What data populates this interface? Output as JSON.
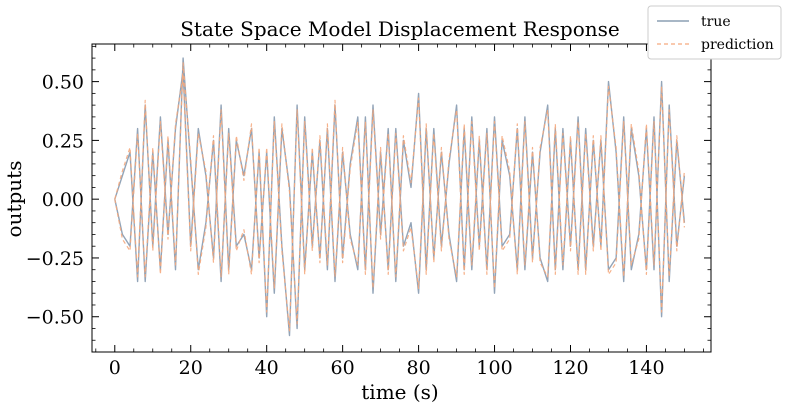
{
  "chart_data": {
    "type": "line",
    "title": "State Space Model Displacement Response",
    "xlabel": "time (s)",
    "ylabel": "outputs",
    "xlim": [
      -6,
      157
    ],
    "ylim": [
      -0.65,
      0.66
    ],
    "x_ticks": [
      0,
      20,
      40,
      60,
      80,
      100,
      120,
      140
    ],
    "x_tick_labels": [
      "0",
      "20",
      "40",
      "60",
      "80",
      "100",
      "120",
      "140"
    ],
    "y_ticks": [
      0.5,
      0.25,
      0.0,
      -0.25,
      -0.5
    ],
    "y_tick_labels": [
      "0.50",
      "0.25",
      "0.00",
      "−0.25",
      "−0.50"
    ],
    "grid": false,
    "legend": {
      "placement": "top-right, outside axes",
      "entries": [
        "true",
        "prediction"
      ]
    },
    "series": [
      {
        "name": "true",
        "color": "#8c9fb4",
        "style": "solid",
        "x": [
          0,
          2,
          4,
          6,
          8,
          10,
          12,
          14,
          16,
          18,
          20,
          22,
          24,
          26,
          28,
          30,
          32,
          34,
          36,
          38,
          40,
          42,
          44,
          46,
          48,
          50,
          52,
          54,
          56,
          58,
          60,
          62,
          64,
          66,
          68,
          70,
          72,
          74,
          76,
          78,
          80,
          82,
          84,
          86,
          88,
          90,
          92,
          94,
          96,
          98,
          100,
          102,
          104,
          106,
          108,
          110,
          112,
          114,
          116,
          118,
          120,
          122,
          124,
          126,
          128,
          130,
          132,
          134,
          136,
          138,
          140,
          142,
          144,
          146,
          148,
          150
        ],
        "y": [
          0,
          0.1,
          0.2,
          -0.35,
          0.4,
          -0.2,
          0.35,
          -0.15,
          0.3,
          0.55,
          -0.2,
          0.3,
          0.1,
          -0.25,
          0.4,
          -0.3,
          0.25,
          0.1,
          0.3,
          -0.25,
          0.2,
          -0.4,
          0.3,
          0.05,
          -0.55,
          0.35,
          -0.2,
          0.25,
          -0.3,
          0.4,
          -0.25,
          0.15,
          0.35,
          -0.3,
          0.4,
          -0.15,
          0.3,
          -0.35,
          0.25,
          0.05,
          0.45,
          -0.3,
          0.3,
          -0.2,
          0.15,
          0.4,
          -0.3,
          0.35,
          -0.2,
          0.3,
          -0.4,
          0.25,
          0.1,
          -0.3,
          0.35,
          -0.25,
          0.2,
          0.4,
          -0.3,
          0.3,
          -0.2,
          0.35,
          -0.3,
          0.25,
          -0.2,
          0.5,
          0.2,
          -0.35,
          0.3,
          0.1,
          -0.3,
          0.35,
          -0.5,
          0.4,
          -0.2,
          0.1
        ]
      },
      {
        "name": "true",
        "color": "#8c9fb4",
        "style": "solid",
        "x": [
          0,
          2,
          4,
          6,
          8,
          10,
          12,
          14,
          16,
          18,
          20,
          22,
          24,
          26,
          28,
          30,
          32,
          34,
          36,
          38,
          40,
          42,
          44,
          46,
          48,
          50,
          52,
          54,
          56,
          58,
          60,
          62,
          64,
          66,
          68,
          70,
          72,
          74,
          76,
          78,
          80,
          82,
          84,
          86,
          88,
          90,
          92,
          94,
          96,
          98,
          100,
          102,
          104,
          106,
          108,
          110,
          112,
          114,
          116,
          118,
          120,
          122,
          124,
          126,
          128,
          130,
          132,
          134,
          136,
          138,
          140,
          142,
          144,
          146,
          148,
          150
        ],
        "y": [
          0,
          -0.15,
          -0.2,
          0.3,
          -0.35,
          0.2,
          -0.3,
          0.25,
          -0.3,
          0.6,
          0.15,
          -0.3,
          -0.1,
          0.25,
          -0.35,
          0.3,
          -0.2,
          -0.15,
          -0.3,
          0.2,
          -0.5,
          0.35,
          -0.2,
          -0.58,
          0.4,
          -0.3,
          0.2,
          -0.25,
          0.3,
          -0.35,
          0.2,
          -0.15,
          -0.3,
          0.35,
          -0.4,
          0.2,
          -0.3,
          0.3,
          -0.2,
          -0.1,
          -0.4,
          0.3,
          -0.25,
          0.2,
          -0.15,
          -0.35,
          0.3,
          -0.3,
          0.25,
          -0.3,
          0.35,
          -0.2,
          -0.15,
          0.3,
          -0.3,
          0.2,
          -0.25,
          -0.35,
          0.3,
          -0.3,
          0.25,
          -0.3,
          0.3,
          -0.2,
          0.25,
          -0.3,
          -0.25,
          0.35,
          -0.3,
          -0.15,
          0.3,
          -0.3,
          0.5,
          -0.35,
          0.25,
          -0.1
        ]
      },
      {
        "name": "prediction",
        "color": "#f5a97d",
        "style": "dashed",
        "x": [
          0,
          2,
          4,
          6,
          8,
          10,
          12,
          14,
          16,
          18,
          20,
          22,
          24,
          26,
          28,
          30,
          32,
          34,
          36,
          38,
          40,
          42,
          44,
          46,
          48,
          50,
          52,
          54,
          56,
          58,
          60,
          62,
          64,
          66,
          68,
          70,
          72,
          74,
          76,
          78,
          80,
          82,
          84,
          86,
          88,
          90,
          92,
          94,
          96,
          98,
          100,
          102,
          104,
          106,
          108,
          110,
          112,
          114,
          116,
          118,
          120,
          122,
          124,
          126,
          128,
          130,
          132,
          134,
          136,
          138,
          140,
          142,
          144,
          146,
          148,
          150
        ],
        "y": [
          0,
          0.12,
          0.22,
          -0.33,
          0.42,
          -0.22,
          0.33,
          -0.17,
          0.32,
          0.53,
          -0.22,
          0.28,
          0.12,
          -0.27,
          0.38,
          -0.32,
          0.27,
          0.08,
          0.32,
          -0.27,
          0.22,
          -0.38,
          0.32,
          0.03,
          -0.53,
          0.33,
          -0.22,
          0.27,
          -0.28,
          0.42,
          -0.27,
          0.13,
          0.33,
          -0.32,
          0.38,
          -0.17,
          0.28,
          -0.33,
          0.27,
          0.07,
          0.43,
          -0.32,
          0.28,
          -0.22,
          0.17,
          0.38,
          -0.32,
          0.33,
          -0.22,
          0.28,
          -0.38,
          0.27,
          0.12,
          -0.32,
          0.33,
          -0.27,
          0.22,
          0.38,
          -0.32,
          0.28,
          -0.22,
          0.33,
          -0.32,
          0.27,
          -0.22,
          0.48,
          0.22,
          -0.33,
          0.32,
          0.12,
          -0.32,
          0.33,
          -0.48,
          0.38,
          -0.22,
          0.12
        ]
      },
      {
        "name": "prediction",
        "color": "#f5a97d",
        "style": "dashed",
        "x": [
          0,
          2,
          4,
          6,
          8,
          10,
          12,
          14,
          16,
          18,
          20,
          22,
          24,
          26,
          28,
          30,
          32,
          34,
          36,
          38,
          40,
          42,
          44,
          46,
          48,
          50,
          52,
          54,
          56,
          58,
          60,
          62,
          64,
          66,
          68,
          70,
          72,
          74,
          76,
          78,
          80,
          82,
          84,
          86,
          88,
          90,
          92,
          94,
          96,
          98,
          100,
          102,
          104,
          106,
          108,
          110,
          112,
          114,
          116,
          118,
          120,
          122,
          124,
          126,
          128,
          130,
          132,
          134,
          136,
          138,
          140,
          142,
          144,
          146,
          148,
          150
        ],
        "y": [
          0,
          -0.17,
          -0.22,
          0.28,
          -0.33,
          0.22,
          -0.32,
          0.27,
          -0.28,
          0.58,
          0.17,
          -0.32,
          -0.12,
          0.27,
          -0.33,
          0.28,
          -0.22,
          -0.13,
          -0.32,
          0.22,
          -0.48,
          0.33,
          -0.22,
          -0.56,
          0.38,
          -0.32,
          0.22,
          -0.27,
          0.32,
          -0.33,
          0.22,
          -0.17,
          -0.28,
          0.33,
          -0.38,
          0.22,
          -0.32,
          0.28,
          -0.22,
          -0.12,
          -0.38,
          0.32,
          -0.27,
          0.22,
          -0.17,
          -0.33,
          0.32,
          -0.28,
          0.27,
          -0.32,
          0.33,
          -0.22,
          -0.17,
          0.32,
          -0.28,
          0.22,
          -0.27,
          -0.33,
          0.32,
          -0.28,
          0.27,
          -0.32,
          0.28,
          -0.22,
          0.27,
          -0.32,
          -0.27,
          0.33,
          -0.28,
          -0.17,
          0.32,
          -0.28,
          0.48,
          -0.33,
          0.27,
          -0.12
        ]
      }
    ]
  }
}
